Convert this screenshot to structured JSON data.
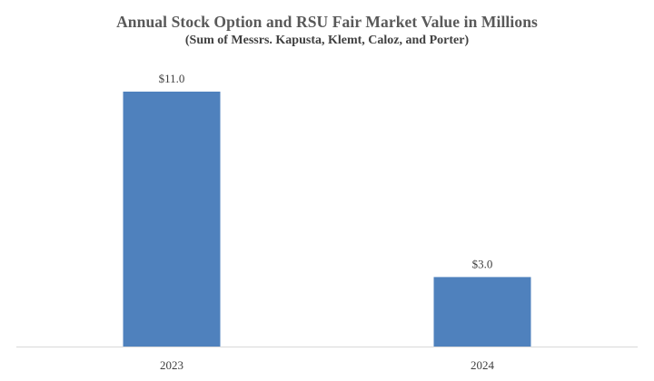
{
  "chart_data": {
    "type": "bar",
    "title": "Annual Stock Option and RSU Fair Market Value in Millions",
    "subtitle": "(Sum of Messrs. Kapusta, Klemt, Caloz, and Porter)",
    "categories": [
      "2023",
      "2024"
    ],
    "values": [
      11.0,
      3.0
    ],
    "data_labels": [
      "$11.0",
      "$3.0"
    ],
    "xlabel": "",
    "ylabel": "",
    "ylim": [
      0,
      11
    ],
    "grid": false,
    "legend": "none",
    "bar_color": "#4f81bd",
    "axis_color": "#d9d9d9"
  }
}
